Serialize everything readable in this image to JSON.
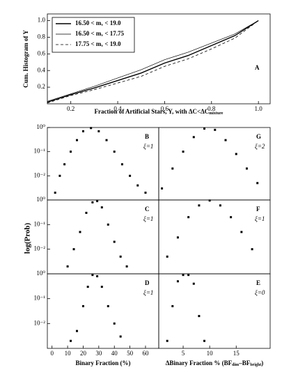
{
  "ylabel": "log(Prob)",
  "chart_data": [
    {
      "type": "line",
      "title": "A",
      "ylabel": "Cum. Histogram of Y",
      "xlabel": "Fraction of Artificial Stars, Y, with ΔC<ΔC",
      "xlabel_sub": "mixture",
      "x": [
        0.1,
        0.2,
        0.3,
        0.4,
        0.5,
        0.6,
        0.7,
        0.8,
        0.9,
        1.0
      ],
      "series": [
        {
          "name": "16.50 < mᵥ < 19.0",
          "color": "#000",
          "line_style": "solid",
          "linewidth": 1.4,
          "values": [
            0.02,
            0.11,
            0.19,
            0.28,
            0.37,
            0.49,
            0.58,
            0.7,
            0.82,
            1.0
          ]
        },
        {
          "name": "16.50 < mᵥ < 17.75",
          "color": "#000",
          "line_style": "solid",
          "linewidth": 0.7,
          "values": [
            0.03,
            0.12,
            0.21,
            0.31,
            0.41,
            0.53,
            0.62,
            0.73,
            0.84,
            1.0
          ]
        },
        {
          "name": "17.75 < mᵥ < 19.0",
          "color": "#000",
          "line_style": "dashed",
          "linewidth": 0.8,
          "values": [
            0.01,
            0.1,
            0.17,
            0.25,
            0.33,
            0.45,
            0.54,
            0.66,
            0.79,
            1.0
          ]
        }
      ],
      "xlim": [
        0.1,
        1.05
      ],
      "ylim": [
        0,
        1.08
      ],
      "xticks": [
        0.2,
        0.4,
        0.6,
        0.8,
        {
          "value": 1,
          "label": "1.0"
        }
      ],
      "yticks": [
        0.2,
        0.4,
        0.6,
        0.8,
        {
          "value": 1,
          "label": "1.0"
        }
      ]
    },
    {
      "type": "scatter",
      "title": "B",
      "annotation": "ξ=1",
      "color": "#000",
      "log_y": true,
      "x": [
        2,
        5,
        8,
        12,
        16,
        20,
        25,
        30,
        35,
        40,
        45,
        50,
        55,
        60
      ],
      "values": [
        0.002,
        0.01,
        0.03,
        0.1,
        0.3,
        0.7,
        0.95,
        0.7,
        0.3,
        0.1,
        0.03,
        0.01,
        0.004,
        0.002
      ],
      "xlim": [
        -3,
        68.5
      ],
      "ylim": [
        0.001,
        1
      ],
      "yticks": [
        {
          "value": 1,
          "label": "10⁰"
        },
        {
          "value": 0.1,
          "label": "10⁻¹"
        },
        {
          "value": 0.01,
          "label": "10⁻²"
        }
      ]
    },
    {
      "type": "scatter",
      "title": "G",
      "annotation": "ξ=2",
      "color": "#000",
      "log_y": true,
      "x": [
        1,
        3,
        5,
        7,
        9,
        11,
        13,
        15,
        17,
        19
      ],
      "values": [
        0.003,
        0.02,
        0.1,
        0.4,
        0.9,
        0.8,
        0.3,
        0.08,
        0.02,
        0.005
      ],
      "xlim": [
        0.4,
        21.4
      ],
      "ylim": [
        0.001,
        1
      ]
    },
    {
      "type": "scatter",
      "title": "C",
      "annotation": "ξ=1",
      "color": "#000",
      "log_y": true,
      "x": [
        10,
        14,
        18,
        22,
        26,
        29,
        32,
        36,
        40,
        44,
        48
      ],
      "values": [
        0.002,
        0.01,
        0.05,
        0.3,
        0.8,
        0.9,
        0.5,
        0.1,
        0.02,
        0.005,
        0.002
      ],
      "xlim": [
        -3,
        68.5
      ],
      "ylim": [
        0.001,
        1
      ],
      "yticks": [
        {
          "value": 1,
          "label": "10⁰"
        },
        {
          "value": 0.1,
          "label": "10⁻¹"
        },
        {
          "value": 0.01,
          "label": "10⁻²"
        }
      ]
    },
    {
      "type": "scatter",
      "title": "F",
      "annotation": "ξ=1",
      "color": "#000",
      "log_y": true,
      "x": [
        2,
        4,
        6,
        8,
        10,
        12,
        14,
        16,
        18
      ],
      "values": [
        0.005,
        0.03,
        0.2,
        0.6,
        0.95,
        0.6,
        0.2,
        0.05,
        0.01
      ],
      "xlim": [
        0.4,
        21.4
      ],
      "ylim": [
        0.001,
        1
      ]
    },
    {
      "type": "scatter",
      "title": "D",
      "annotation": "ξ=1",
      "color": "#000",
      "log_y": true,
      "x": [
        12,
        16,
        20,
        23,
        26,
        29,
        32,
        36,
        40,
        44
      ],
      "values": [
        0.002,
        0.005,
        0.05,
        0.3,
        0.9,
        0.8,
        0.3,
        0.05,
        0.01,
        0.003
      ],
      "xlim": [
        -3,
        68.5
      ],
      "ylim": [
        0.001,
        1
      ],
      "yticks": [
        {
          "value": 1,
          "label": "10⁰"
        },
        {
          "value": 0.1,
          "label": "10⁻¹"
        },
        {
          "value": 0.01,
          "label": "10⁻²"
        }
      ],
      "xticks": [
        0,
        10,
        20,
        30,
        40,
        50,
        60
      ],
      "xlabel": "Binary Fraction (%)"
    },
    {
      "type": "scatter",
      "title": "E",
      "annotation": "ξ=0",
      "color": "#000",
      "log_y": true,
      "x": [
        2,
        3,
        4,
        5,
        6,
        7,
        8,
        9
      ],
      "values": [
        0.002,
        0.05,
        0.5,
        0.9,
        0.9,
        0.4,
        0.02,
        0.002
      ],
      "xlim": [
        0.4,
        21.4
      ],
      "ylim": [
        0.001,
        1
      ],
      "xticks": [
        5,
        10,
        15
      ],
      "xlabel_parts": [
        "ΔBinary Fraction % (BF",
        "dim",
        "–BF",
        "bright",
        ")"
      ]
    }
  ]
}
